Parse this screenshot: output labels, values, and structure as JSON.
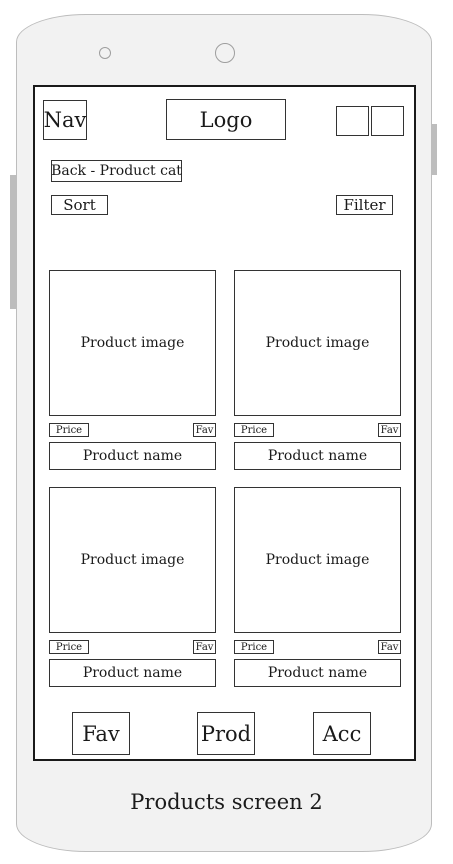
{
  "header": {
    "nav_label": "Nav",
    "logo_label": "Logo"
  },
  "subnav": {
    "back_label": "Back - Product cat",
    "sort_label": "Sort",
    "filter_label": "Filter"
  },
  "products": [
    {
      "image_label": "Product image",
      "price_label": "Price",
      "fav_label": "Fav",
      "name_label": "Product name"
    },
    {
      "image_label": "Product image",
      "price_label": "Price",
      "fav_label": "Fav",
      "name_label": "Product name"
    },
    {
      "image_label": "Product image",
      "price_label": "Price",
      "fav_label": "Fav",
      "name_label": "Product name"
    },
    {
      "image_label": "Product image",
      "price_label": "Price",
      "fav_label": "Fav",
      "name_label": "Product name"
    }
  ],
  "bottom_nav": {
    "fav_label": "Fav",
    "prod_label": "Prod",
    "acc_label": "Acc"
  },
  "caption": "Products screen 2"
}
